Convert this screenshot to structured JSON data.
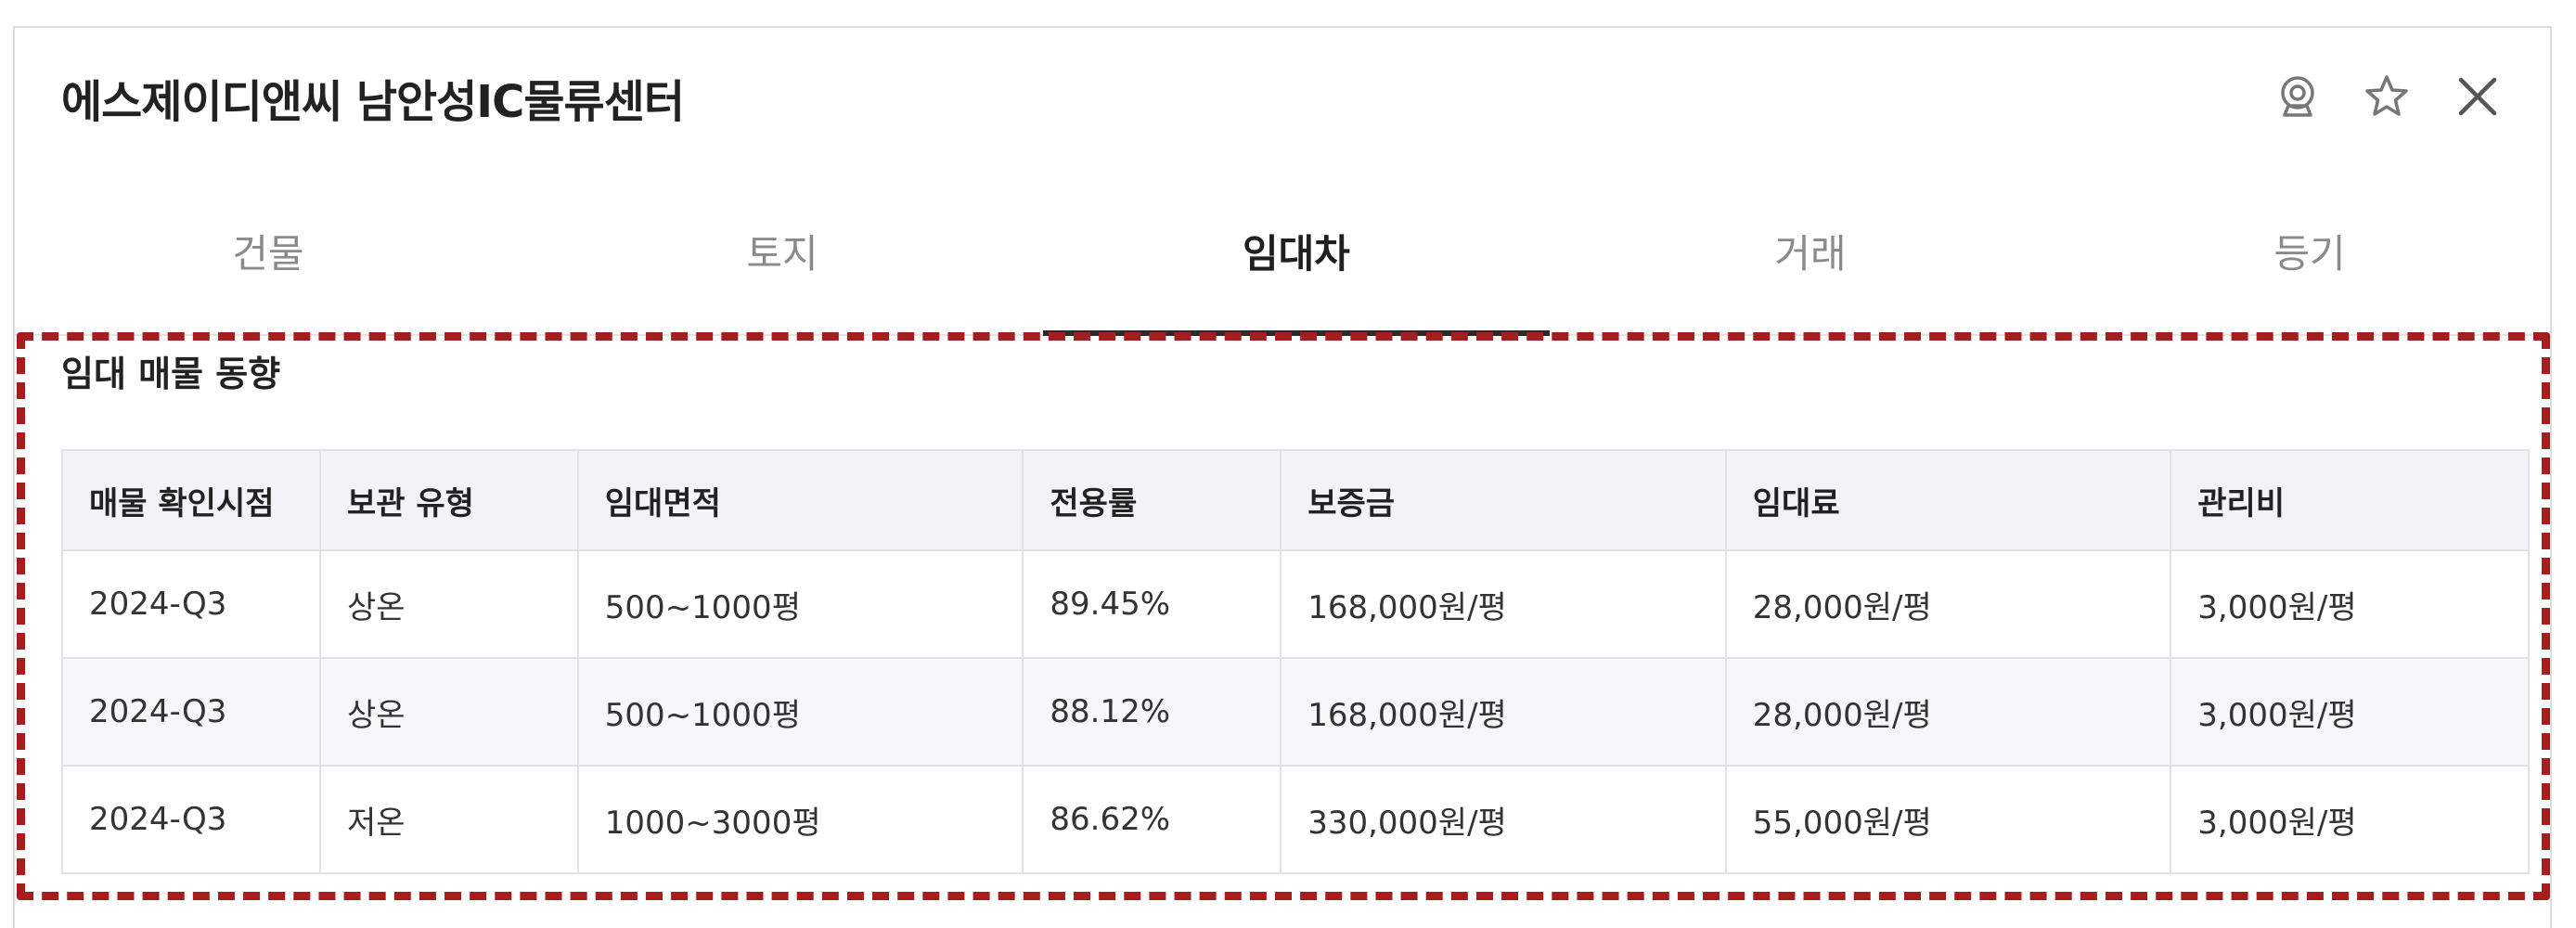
{
  "header": {
    "title": "에스제이디앤씨 남안성IC물류센터",
    "icons": [
      "cctv-icon",
      "star-icon",
      "close-icon"
    ]
  },
  "tabs": [
    {
      "label": "건물",
      "active": false
    },
    {
      "label": "토지",
      "active": false
    },
    {
      "label": "임대차",
      "active": true
    },
    {
      "label": "거래",
      "active": false
    },
    {
      "label": "등기",
      "active": false
    }
  ],
  "section": {
    "title": "임대 매물 동향"
  },
  "table": {
    "columns": [
      "매물 확인시점",
      "보관 유형",
      "임대면적",
      "전용률",
      "보증금",
      "임대료",
      "관리비"
    ],
    "rows": [
      [
        "2024-Q3",
        "상온",
        "500~1000평",
        "89.45%",
        "168,000원/평",
        "28,000원/평",
        "3,000원/평"
      ],
      [
        "2024-Q3",
        "상온",
        "500~1000평",
        "88.12%",
        "168,000원/평",
        "28,000원/평",
        "3,000원/평"
      ],
      [
        "2024-Q3",
        "저온",
        "1000~3000평",
        "86.62%",
        "330,000원/평",
        "55,000원/평",
        "3,000원/평"
      ]
    ]
  },
  "colors": {
    "annotation_dash": "#a51d1d",
    "header_bg": "#f2f3f6",
    "active_tab": "#1f1f1f",
    "inactive_tab": "#8a8a8a"
  }
}
